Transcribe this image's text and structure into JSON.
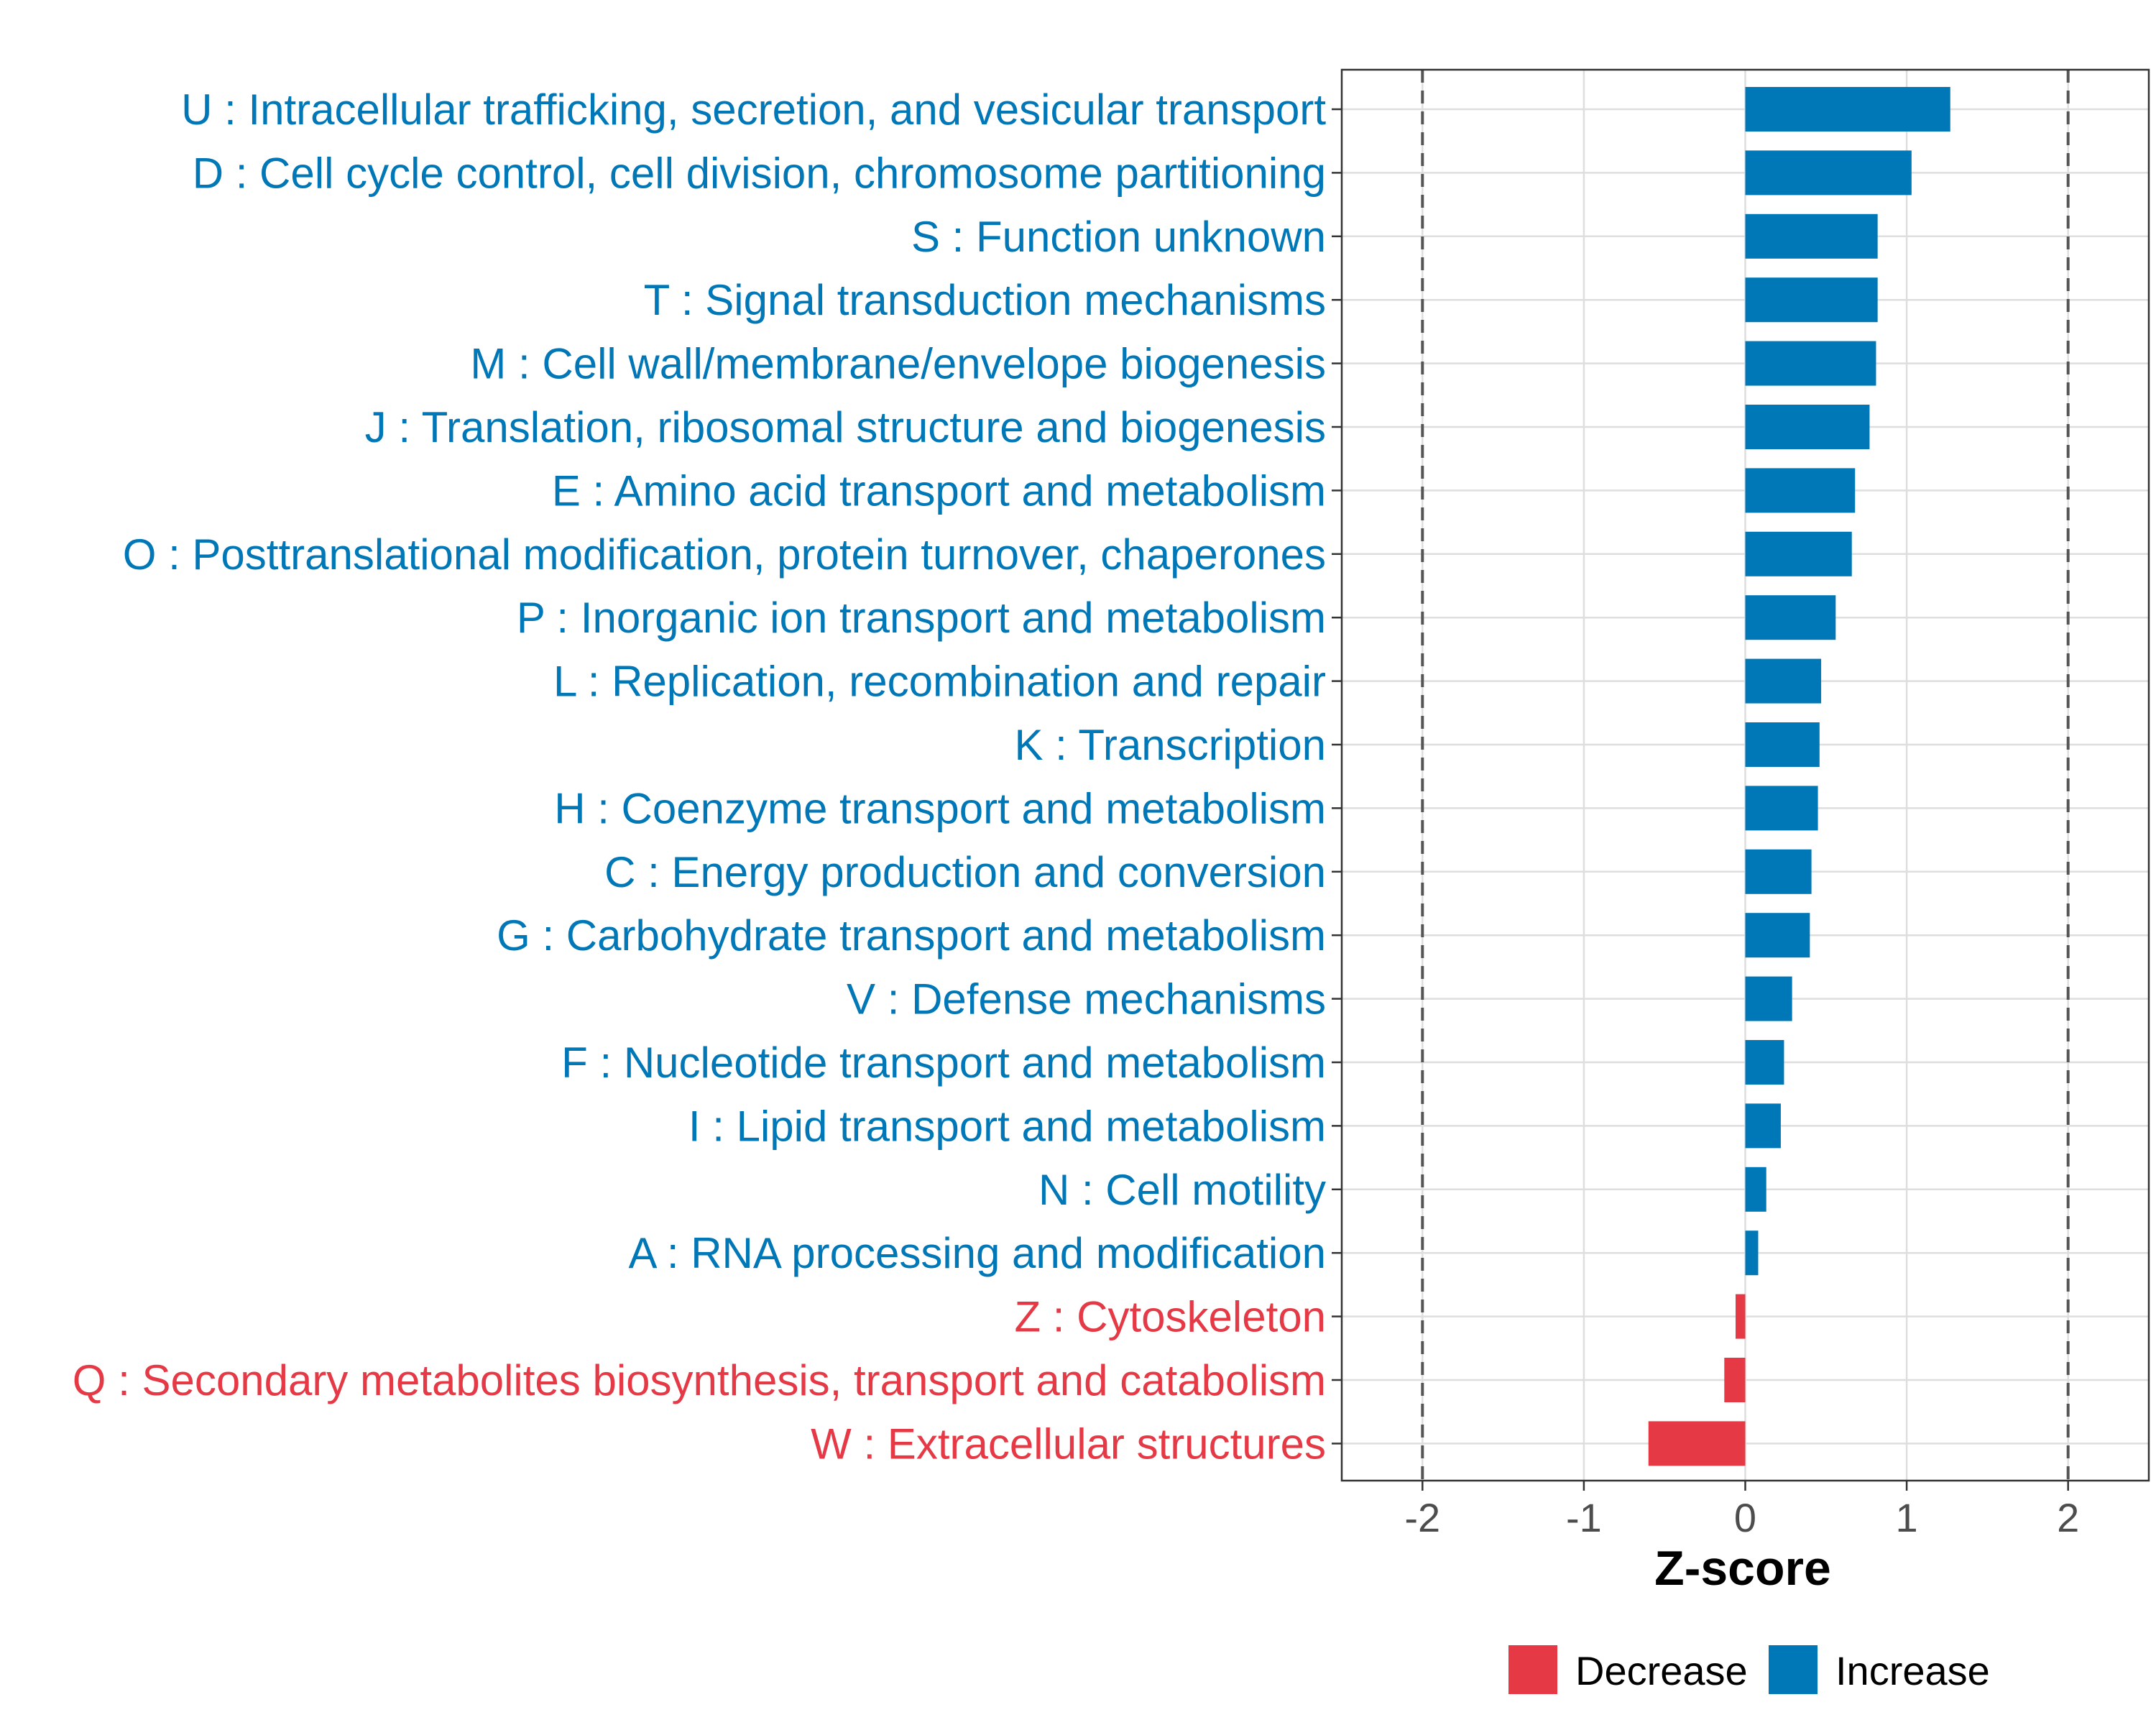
{
  "chart_data": {
    "type": "bar",
    "orientation": "horizontal",
    "categories": [
      "U : Intracellular trafficking, secretion, and vesicular transport",
      "D : Cell cycle control, cell division, chromosome partitioning",
      "S : Function unknown",
      "T : Signal transduction mechanisms",
      "M : Cell wall/membrane/envelope biogenesis",
      "J : Translation, ribosomal structure and biogenesis",
      "E : Amino acid transport and metabolism",
      "O : Posttranslational modification, protein turnover, chaperones",
      "P : Inorganic ion transport and metabolism",
      "L : Replication, recombination and repair",
      "K : Transcription",
      "H : Coenzyme transport and metabolism",
      "C : Energy production and conversion",
      "G : Carbohydrate transport and metabolism",
      "V : Defense mechanisms",
      "F : Nucleotide transport and metabolism",
      "I : Lipid transport and metabolism",
      "N : Cell motility",
      "A : RNA processing and modification",
      "Z : Cytoskeleton",
      "Q : Secondary metabolites biosynthesis, transport and catabolism",
      "W : Extracellular structures"
    ],
    "values": [
      1.27,
      1.03,
      0.82,
      0.82,
      0.81,
      0.77,
      0.68,
      0.66,
      0.56,
      0.47,
      0.46,
      0.45,
      0.41,
      0.4,
      0.29,
      0.24,
      0.22,
      0.13,
      0.08,
      -0.06,
      -0.13,
      -0.6
    ],
    "direction": [
      "Increase",
      "Increase",
      "Increase",
      "Increase",
      "Increase",
      "Increase",
      "Increase",
      "Increase",
      "Increase",
      "Increase",
      "Increase",
      "Increase",
      "Increase",
      "Increase",
      "Increase",
      "Increase",
      "Increase",
      "Increase",
      "Increase",
      "Decrease",
      "Decrease",
      "Decrease"
    ],
    "title": "",
    "xlabel": "Z-score",
    "ylabel": "",
    "xlim": [
      -2.5,
      2.5
    ],
    "xticks": [
      -2,
      -1,
      0,
      1,
      2
    ],
    "xtick_labels": [
      "-2",
      "-1",
      "0",
      "1",
      "2"
    ],
    "reference_lines": [
      -2,
      2
    ],
    "grid": true,
    "legend": {
      "position": "bottom",
      "entries": [
        {
          "label": "Decrease",
          "color": "#e63946"
        },
        {
          "label": "Increase",
          "color": "#0077b6"
        }
      ]
    }
  },
  "colors": {
    "increase": "#0077b6",
    "decrease": "#e63946",
    "grid": "#dedede",
    "reference_line": "#555555"
  }
}
